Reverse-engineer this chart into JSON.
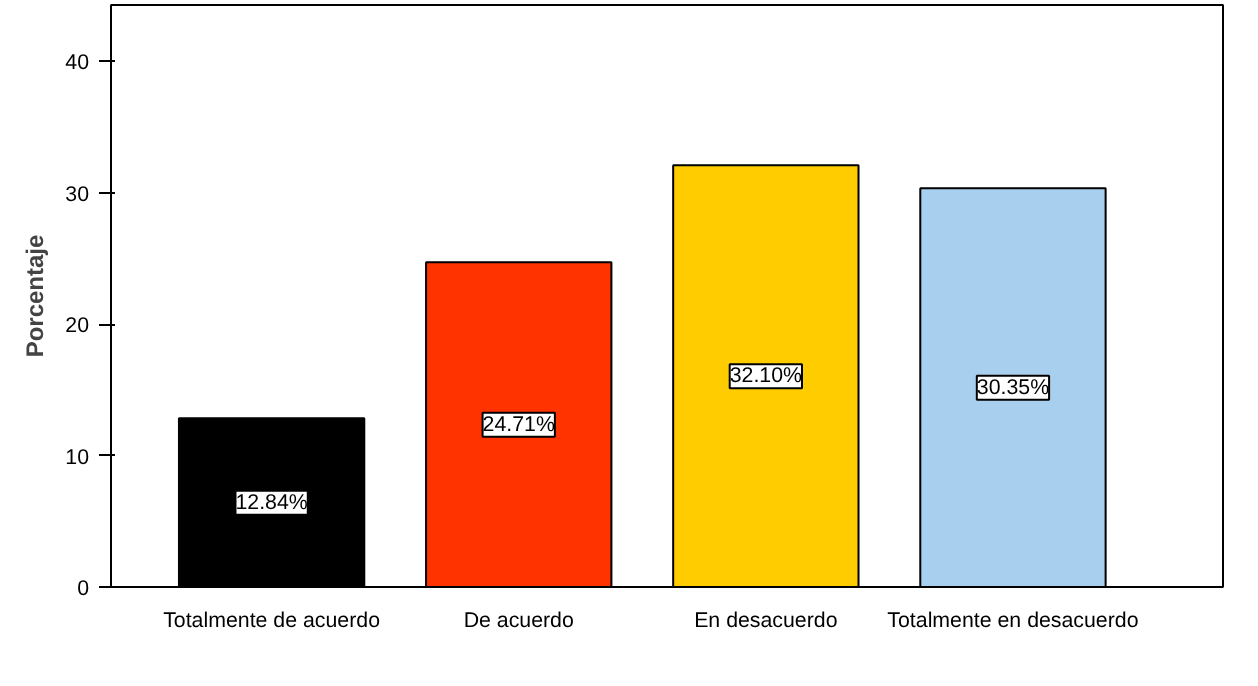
{
  "chart_data": {
    "type": "bar",
    "ylabel": "Porcentaje",
    "categories": [
      "Totalmente de acuerdo",
      "De acuerdo",
      "En desacuerdo",
      "Totalmente en desacuerdo"
    ],
    "values": [
      12.84,
      24.71,
      32.1,
      30.35
    ],
    "colors": [
      "#000000",
      "#ff3300",
      "#ffcc00",
      "#a8cfee"
    ],
    "value_labels": [
      "12.84%",
      "24.71%",
      "32.10%",
      "30.35%"
    ],
    "ylim": [
      0,
      44.3
    ],
    "yticks": [
      0,
      10,
      20,
      30,
      40
    ],
    "grid": false
  }
}
